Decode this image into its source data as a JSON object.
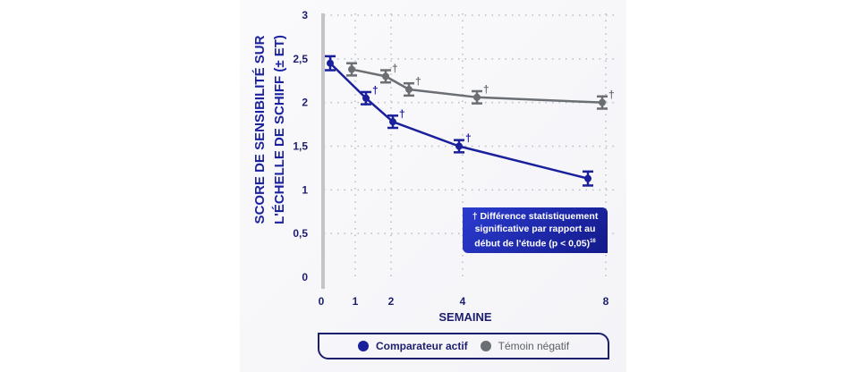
{
  "chart_data": {
    "type": "line",
    "xlabel": "SEMAINE",
    "ylabel_lines": [
      "SCORE DE SENSIBILITÉ SUR",
      "L'ÉCHELLE DE SCHIFF (± ET)"
    ],
    "x_ticks": [
      "0",
      "1",
      "2",
      "4",
      "8"
    ],
    "x_tick_values": [
      0,
      1,
      2,
      4,
      8
    ],
    "y_ticks": [
      "0",
      "0,5",
      "1",
      "1,5",
      "2",
      "2,5",
      "3"
    ],
    "ylim": [
      0,
      3
    ],
    "grid": "dotted",
    "legend_placement": "bottom",
    "series": [
      {
        "name": "Comparateur actif",
        "color": "#1a1f9c",
        "x": [
          0,
          1,
          2,
          4,
          8
        ],
        "y": [
          2.45,
          2.05,
          1.78,
          1.5,
          1.13
        ],
        "err": [
          0.08,
          0.07,
          0.07,
          0.07,
          0.08
        ],
        "significant": [
          false,
          true,
          true,
          true,
          false
        ]
      },
      {
        "name": "Témoin négatif",
        "color": "#6b6f74",
        "x": [
          0,
          1,
          2,
          4,
          8
        ],
        "y": [
          2.38,
          2.3,
          2.15,
          2.06,
          2.0
        ],
        "err": [
          0.07,
          0.07,
          0.07,
          0.07,
          0.07
        ],
        "significant": [
          false,
          true,
          true,
          true,
          true
        ]
      }
    ],
    "annotation": {
      "text": "† Différence statistiquement significative par rapport au début de l'étude (p < 0,05)",
      "superscript": "16"
    },
    "significance_marker": "†"
  }
}
